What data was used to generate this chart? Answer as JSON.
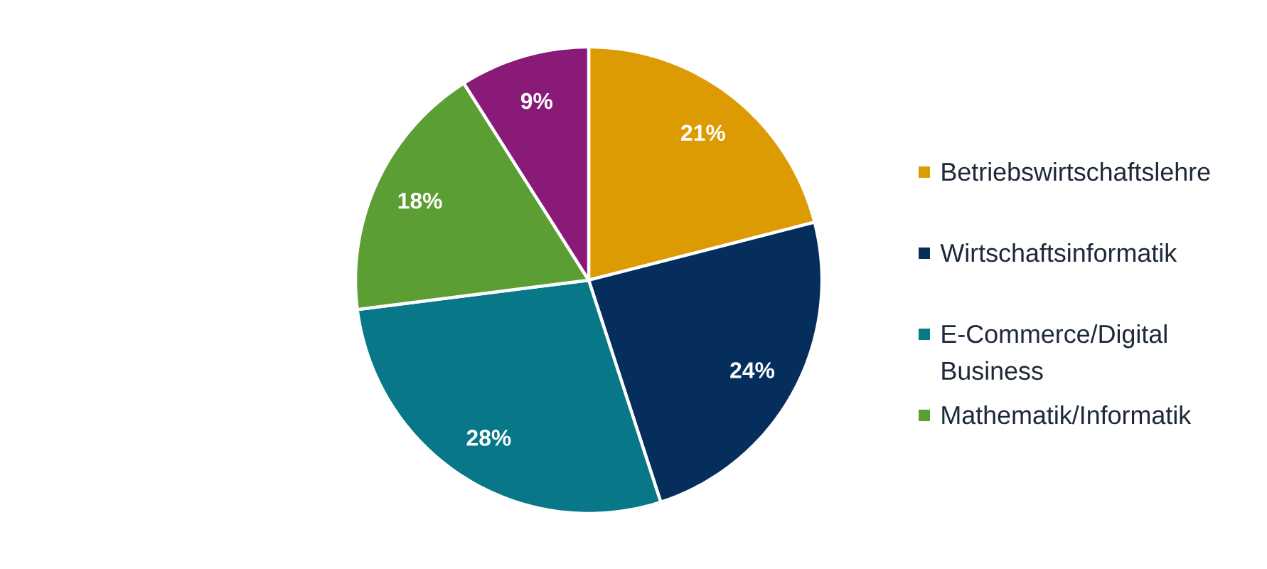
{
  "chart_data": {
    "type": "pie",
    "categories": [
      "Betriebswirtschaftslehre",
      "Wirtschaftsinformatik",
      "E-Commerce/Digital Business",
      "Mathematik/Informatik",
      null
    ],
    "values": [
      21,
      24,
      28,
      18,
      9
    ],
    "value_labels": [
      "21%",
      "24%",
      "28%",
      "18%",
      "9%"
    ],
    "colors": [
      "#dc9a03",
      "#062e5c",
      "#087889",
      "#5b9e34",
      "#8a1a78"
    ],
    "legend": "right"
  }
}
